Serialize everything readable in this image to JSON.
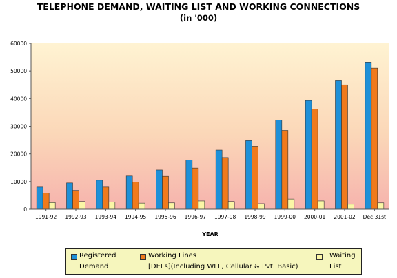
{
  "chart_data": {
    "type": "bar",
    "title": "TELEPHONE DEMAND, WAITING LIST AND WORKING CONNECTIONS",
    "subtitle": "(in '000)",
    "xlabel": "YEAR",
    "ylabel": "",
    "ylim": [
      0,
      60000
    ],
    "yticks": [
      0,
      10000,
      20000,
      30000,
      40000,
      50000,
      60000
    ],
    "grid": false,
    "legend_position": "bottom",
    "categories": [
      "1991-92",
      "1992-93",
      "1993-94",
      "1994-95",
      "1995-96",
      "1996-97",
      "1997-98",
      "1998-99",
      "1999-00",
      "2000-01",
      "2001-02",
      "Dec.31st"
    ],
    "series": [
      {
        "name": "Registered Demand",
        "color": "#1e90d8",
        "values": [
          8000,
          9500,
          10500,
          12000,
          14200,
          17800,
          21400,
          24800,
          32200,
          39300,
          46700,
          53200
        ]
      },
      {
        "name": "Working Lines [DELs](Including WLL, Cellular & Pvt. Basic)",
        "color": "#f07a1c",
        "values": [
          5800,
          6800,
          8000,
          9800,
          11900,
          14900,
          18700,
          22800,
          28500,
          36200,
          45000,
          51000
        ]
      },
      {
        "name": "Waiting List",
        "color": "#fbf6a6",
        "values": [
          2400,
          2800,
          2600,
          2200,
          2300,
          3000,
          2800,
          2000,
          3700,
          3000,
          1800,
          2300
        ]
      }
    ]
  },
  "legend": {
    "items": [
      {
        "line1": "Registered",
        "line2": "Demand"
      },
      {
        "line1": "Working Lines",
        "line2": "[DELs](Including WLL, Cellular & Pvt. Basic)"
      },
      {
        "line1": "Waiting",
        "line2": "List"
      }
    ]
  }
}
